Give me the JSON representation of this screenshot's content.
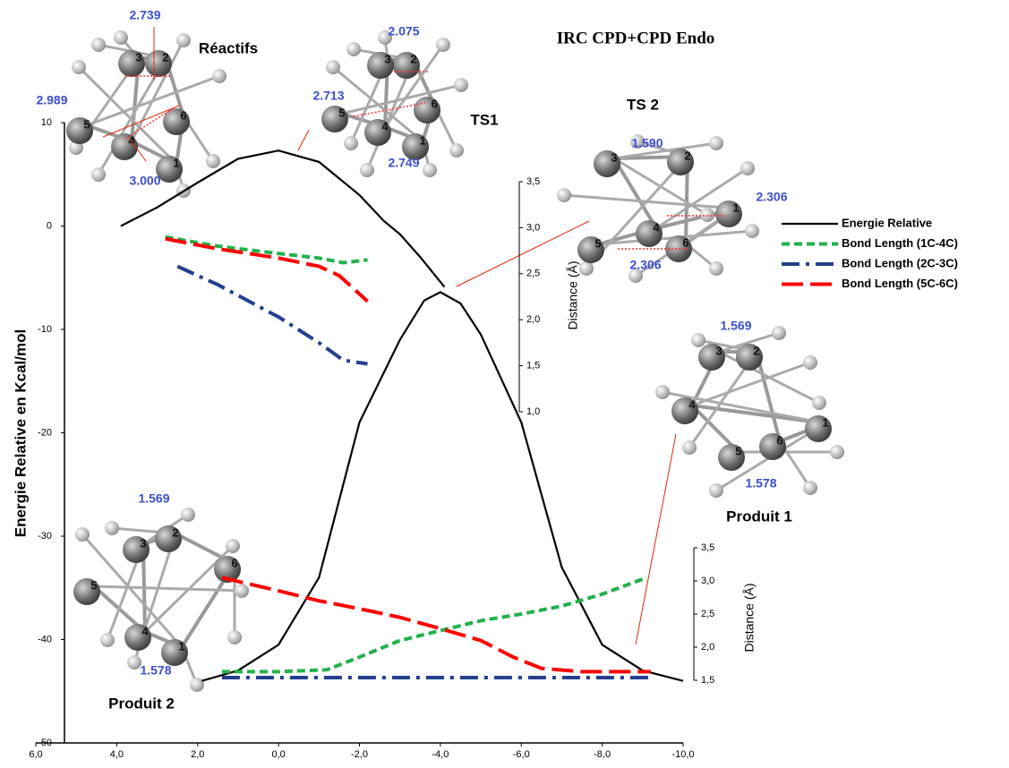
{
  "chart_data": [
    {
      "type": "line",
      "title": "IRC CPD+CPD Endo",
      "ylabel": "Energie Relative en Kcal/mol",
      "xlim": [
        6,
        -10
      ],
      "xticks": [
        {
          "value": 6,
          "label": "6,0"
        },
        {
          "value": 4,
          "label": "4,0"
        },
        {
          "value": 2,
          "label": "2,0"
        },
        {
          "value": 0,
          "label": "0,0"
        },
        {
          "value": -2,
          "label": "-2,0"
        },
        {
          "value": -4,
          "label": "-4,0"
        },
        {
          "value": -6,
          "label": "-6,0"
        },
        {
          "value": -8,
          "label": "-8,0"
        },
        {
          "value": -10,
          "label": "-10,0"
        }
      ],
      "ylim": [
        -50,
        10
      ],
      "yticks": [
        10,
        0,
        -10,
        -20,
        -30,
        -40,
        -50
      ],
      "series": [
        {
          "name": "Energie Relative",
          "color": "#000000",
          "x": [
            3.9,
            3,
            2,
            1,
            0,
            -1,
            -2,
            -2.6,
            -3,
            -3.5,
            -4.1,
            null,
            1.9,
            1,
            0,
            -1,
            -2,
            -3,
            -3.6,
            -4,
            -4.5,
            -5,
            -6,
            -7,
            -8,
            -9,
            -10
          ],
          "values": [
            0,
            1.8,
            4.2,
            6.5,
            7.3,
            6.2,
            3,
            0.5,
            -0.8,
            -3,
            -5.9,
            null,
            -44,
            -43,
            -40.5,
            -34,
            -19,
            -11,
            -7.2,
            -6.4,
            -7.5,
            -10.5,
            -19,
            -33,
            -40.5,
            -43,
            -44
          ]
        }
      ]
    },
    {
      "type": "line",
      "ylabel": "Distance (Å)",
      "xlim": [
        6,
        -10
      ],
      "ylim": [
        1,
        3.5
      ],
      "yticks": [
        {
          "value": 1,
          "label": "1,0"
        },
        {
          "value": 1.5,
          "label": "1,5"
        },
        {
          "value": 2,
          "label": "2,0"
        },
        {
          "value": 2.5,
          "label": "2,5"
        },
        {
          "value": 3,
          "label": "3,0"
        },
        {
          "value": 3.5,
          "label": "3,5"
        }
      ],
      "series": [
        {
          "name": "Bond Length (1C-4C)",
          "color": "#22b14c",
          "x": [
            2.8,
            1.5,
            0,
            -1,
            -1.6,
            -2.2
          ],
          "values": [
            2.9,
            2.8,
            2.72,
            2.67,
            2.62,
            2.65
          ]
        },
        {
          "name": "Bond Length (2C-3C)",
          "color": "#23408e",
          "x": [
            2.5,
            1.5,
            0,
            -1,
            -1.6,
            -2.2
          ],
          "values": [
            2.58,
            2.38,
            2.03,
            1.75,
            1.56,
            1.52
          ]
        },
        {
          "name": "Bond Length (5C-6C)",
          "color": "#ff0000",
          "x": [
            2.8,
            1.5,
            0,
            -1,
            -1.5,
            -2.2
          ],
          "values": [
            2.88,
            2.77,
            2.67,
            2.58,
            2.48,
            2.2
          ]
        }
      ]
    },
    {
      "type": "line",
      "ylabel": "Distance (Å)",
      "xlim": [
        6,
        -10
      ],
      "ylim": [
        1.5,
        3.5
      ],
      "yticks": [
        {
          "value": 1.5,
          "label": "1,5"
        },
        {
          "value": 2,
          "label": "2,0"
        },
        {
          "value": 2.5,
          "label": "2,5"
        },
        {
          "value": 3,
          "label": "3,0"
        },
        {
          "value": 3.5,
          "label": "3,5"
        }
      ],
      "series": [
        {
          "color": "#22b14c",
          "x": [
            1.4,
            0,
            -1.2,
            -2,
            -3,
            -4,
            -5,
            -6,
            -7,
            -8,
            -9.1
          ],
          "values": [
            1.63,
            1.63,
            1.66,
            1.85,
            2.1,
            2.25,
            2.4,
            2.5,
            2.62,
            2.8,
            3.05
          ]
        },
        {
          "color": "#23408e",
          "x": [
            1.4,
            -9.2
          ],
          "values": [
            1.54,
            1.54
          ]
        },
        {
          "color": "#ff0000",
          "x": [
            1.4,
            0,
            -1,
            -2,
            -3,
            -4,
            -5,
            -5.8,
            -6.5,
            -7.5,
            -9.2
          ],
          "values": [
            3.05,
            2.85,
            2.7,
            2.58,
            2.45,
            2.28,
            2.1,
            1.85,
            1.68,
            1.63,
            1.63
          ]
        }
      ]
    }
  ],
  "molecules": [
    {
      "name": "Réactifs",
      "atoms": [
        "1",
        "2",
        "3",
        "4",
        "5",
        "6"
      ],
      "distances": [
        "2.739",
        "2.989",
        "3.000"
      ]
    },
    {
      "name": "TS1",
      "atoms": [
        "1",
        "2",
        "3",
        "4",
        "5",
        "6"
      ],
      "distances": [
        "2.075",
        "2.713",
        "2.749"
      ]
    },
    {
      "name": "TS 2",
      "atoms": [
        "1",
        "2",
        "3",
        "4",
        "5",
        "6"
      ],
      "distances": [
        "1.590",
        "2.306",
        "2.306"
      ]
    },
    {
      "name": "Produit 1",
      "atoms": [
        "1",
        "2",
        "3",
        "4",
        "5",
        "6"
      ],
      "distances": [
        "1.569",
        "1.578"
      ]
    },
    {
      "name": "Produit 2",
      "atoms": [
        "1",
        "2",
        "3",
        "4",
        "5",
        "6"
      ],
      "distances": [
        "1.569",
        "1.578"
      ]
    }
  ]
}
